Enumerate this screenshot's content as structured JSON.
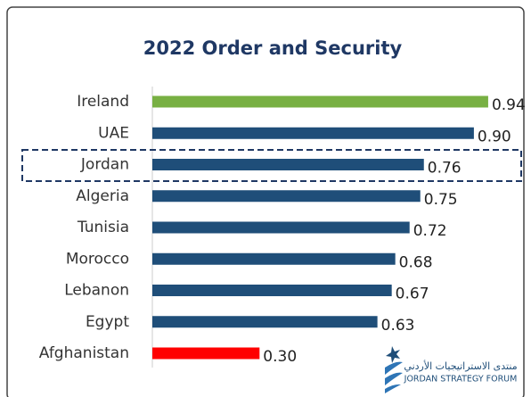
{
  "chart_data": {
    "type": "bar",
    "orientation": "horizontal",
    "title": "2022 Order and Security",
    "categories": [
      "Ireland",
      "UAE",
      "Jordan",
      "Algeria",
      "Tunisia",
      "Morocco",
      "Lebanon",
      "Egypt",
      "Afghanistan"
    ],
    "values": [
      0.94,
      0.9,
      0.76,
      0.75,
      0.72,
      0.68,
      0.67,
      0.63,
      0.3
    ],
    "value_labels": [
      "0.94",
      "0.90",
      "0.76",
      "0.75",
      "0.72",
      "0.68",
      "0.67",
      "0.63",
      "0.30"
    ],
    "colors": [
      "#78b043",
      "#1f4e79",
      "#1f4e79",
      "#1f4e79",
      "#1f4e79",
      "#1f4e79",
      "#1f4e79",
      "#1f4e79",
      "#ff0000"
    ],
    "xlim": [
      0,
      1
    ]
  },
  "logo": {
    "arabic": "منتدى الاستراتيجيات الأردني",
    "english": "JORDAN STRATEGY FORUM"
  }
}
